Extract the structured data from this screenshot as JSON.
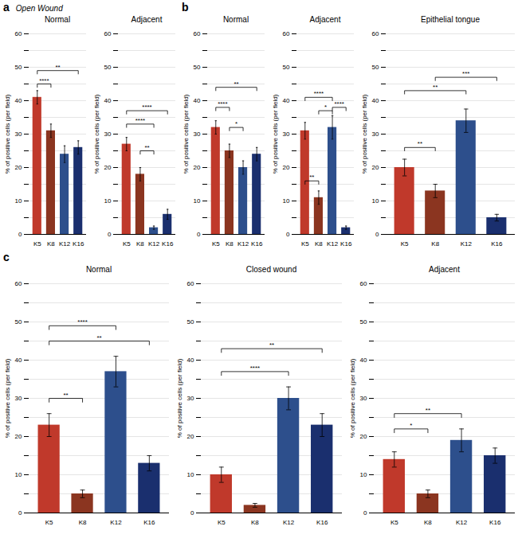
{
  "chart_data": [
    {
      "type": "bar",
      "title": "Normal",
      "annotations": [
        "a",
        "Open Wound"
      ],
      "categories": [
        "K5",
        "K8",
        "K12",
        "K16"
      ],
      "values": [
        41,
        31,
        24,
        26
      ],
      "errors": [
        2.0,
        2.0,
        2.5,
        2.0
      ],
      "colors": [
        "#c0392b",
        "#8B3520",
        "#2d4f8c",
        "#1a2f6e"
      ],
      "significance": [
        {
          "from": "K5",
          "to": "K8",
          "y": 44,
          "label": "****"
        },
        {
          "from": "K5",
          "to": "K16",
          "y": 48,
          "label": "**"
        }
      ],
      "ylabel": "% of positive cells (per field)",
      "ylim": [
        0,
        60
      ],
      "yticks": [
        0,
        {
          "value": 5,
          "label": ""
        },
        10,
        {
          "value": 15,
          "label": ""
        },
        20,
        {
          "value": 25,
          "label": ""
        },
        30,
        {
          "value": 35,
          "label": ""
        },
        40,
        {
          "value": 45,
          "label": ""
        },
        50,
        {
          "value": 55,
          "label": ""
        },
        60
      ],
      "grid": true
    },
    {
      "type": "bar",
      "title": "Adjacent",
      "categories": [
        "K5",
        "K8",
        "K12",
        "K16"
      ],
      "values": [
        27,
        18,
        2,
        6
      ],
      "errors": [
        2.0,
        2.0,
        0.5,
        1.5
      ],
      "colors": [
        "#c0392b",
        "#8B3520",
        "#2d4f8c",
        "#1a2f6e"
      ],
      "significance": [
        {
          "from": "K5",
          "to": "K12",
          "y": 32,
          "label": "****"
        },
        {
          "from": "K5",
          "to": "K16",
          "y": 36,
          "label": "****"
        },
        {
          "from": "K8",
          "to": "K12",
          "y": 24,
          "label": "**"
        }
      ],
      "ylabel": "% of positive cells (per field)",
      "ylim": [
        0,
        60
      ],
      "yticks": [
        0,
        {
          "value": 5,
          "label": ""
        },
        10,
        {
          "value": 15,
          "label": ""
        },
        20,
        {
          "value": 25,
          "label": ""
        },
        30,
        {
          "value": 35,
          "label": ""
        },
        40,
        {
          "value": 45,
          "label": ""
        },
        50,
        {
          "value": 55,
          "label": ""
        },
        60
      ],
      "grid": true
    },
    {
      "type": "bar",
      "title": "Normal",
      "annotations": [
        "b"
      ],
      "categories": [
        "K5",
        "K8",
        "K12",
        "K16"
      ],
      "values": [
        32,
        25,
        20,
        24
      ],
      "errors": [
        2.0,
        2.0,
        2.0,
        2.0
      ],
      "colors": [
        "#c0392b",
        "#8B3520",
        "#2d4f8c",
        "#1a2f6e"
      ],
      "significance": [
        {
          "from": "K5",
          "to": "K8",
          "y": 37,
          "label": "****"
        },
        {
          "from": "K5",
          "to": "K16",
          "y": 43,
          "label": "**"
        },
        {
          "from": "K8",
          "to": "K12",
          "y": 31,
          "label": "*"
        }
      ],
      "ylabel": "% of positive cells (per field)",
      "ylim": [
        0,
        60
      ],
      "yticks": [
        0,
        {
          "value": 5,
          "label": ""
        },
        10,
        {
          "value": 15,
          "label": ""
        },
        20,
        {
          "value": 25,
          "label": ""
        },
        30,
        {
          "value": 35,
          "label": ""
        },
        40,
        {
          "value": 45,
          "label": ""
        },
        50,
        {
          "value": 55,
          "label": ""
        },
        60
      ],
      "grid": true
    },
    {
      "type": "bar",
      "title": "Adjacent",
      "categories": [
        "K5",
        "K8",
        "K12",
        "K16"
      ],
      "values": [
        31,
        11,
        32,
        2
      ],
      "errors": [
        2.5,
        2.0,
        3.5,
        0.5
      ],
      "colors": [
        "#c0392b",
        "#8B3520",
        "#2d4f8c",
        "#1a2f6e"
      ],
      "significance": [
        {
          "from": "K5",
          "to": "K8",
          "y": 15,
          "label": "**"
        },
        {
          "from": "K8",
          "to": "K12",
          "y": 36,
          "label": "*"
        },
        {
          "from": "K5",
          "to": "K12",
          "y": 40,
          "label": "****"
        },
        {
          "from": "K12",
          "to": "K16",
          "y": 37,
          "label": "****"
        }
      ],
      "ylabel": "% of positive cells (per field)",
      "ylim": [
        0,
        60
      ],
      "yticks": [
        0,
        {
          "value": 5,
          "label": ""
        },
        10,
        {
          "value": 15,
          "label": ""
        },
        20,
        {
          "value": 25,
          "label": ""
        },
        30,
        {
          "value": 35,
          "label": ""
        },
        40,
        {
          "value": 45,
          "label": ""
        },
        50,
        {
          "value": 55,
          "label": ""
        },
        60
      ],
      "grid": true
    },
    {
      "type": "bar",
      "title": "Epithelial tongue",
      "categories": [
        "K5",
        "K8",
        "K12",
        "K16"
      ],
      "values": [
        20,
        13,
        34,
        5
      ],
      "errors": [
        2.5,
        2.0,
        3.5,
        1.0
      ],
      "colors": [
        "#c0392b",
        "#8B3520",
        "#2d4f8c",
        "#1a2f6e"
      ],
      "significance": [
        {
          "from": "K5",
          "to": "K8",
          "y": 25,
          "label": "**"
        },
        {
          "from": "K5",
          "to": "K12",
          "y": 42,
          "label": "**"
        },
        {
          "from": "K8",
          "to": "K16",
          "y": 46,
          "label": "***"
        }
      ],
      "ylabel": "% of positive cells (per field)",
      "ylim": [
        0,
        60
      ],
      "yticks": [
        0,
        {
          "value": 5,
          "label": ""
        },
        10,
        {
          "value": 15,
          "label": ""
        },
        20,
        {
          "value": 25,
          "label": ""
        },
        30,
        {
          "value": 35,
          "label": ""
        },
        40,
        {
          "value": 45,
          "label": ""
        },
        50,
        {
          "value": 55,
          "label": ""
        },
        60
      ],
      "grid": true
    },
    {
      "type": "bar",
      "title": "Normal",
      "annotations": [
        "c"
      ],
      "categories": [
        "K5",
        "K8",
        "K12",
        "K16"
      ],
      "values": [
        23,
        5,
        37,
        13
      ],
      "errors": [
        3.0,
        1.0,
        4.0,
        2.0
      ],
      "colors": [
        "#c0392b",
        "#8B3520",
        "#2d4f8c",
        "#1a2f6e"
      ],
      "significance": [
        {
          "from": "K5",
          "to": "K8",
          "y": 29,
          "label": "**"
        },
        {
          "from": "K5",
          "to": "K12",
          "y": 48,
          "label": "****"
        },
        {
          "from": "K5",
          "to": "K16",
          "y": 44,
          "label": "**"
        }
      ],
      "ylabel": "% of positive cells (per field)",
      "ylim": [
        0,
        60
      ],
      "yticks": [
        0,
        {
          "value": 5,
          "label": ""
        },
        10,
        {
          "value": 15,
          "label": ""
        },
        20,
        {
          "value": 25,
          "label": ""
        },
        30,
        {
          "value": 35,
          "label": ""
        },
        40,
        {
          "value": 45,
          "label": ""
        },
        50,
        {
          "value": 55,
          "label": ""
        },
        60
      ],
      "grid": true
    },
    {
      "type": "bar",
      "title": "Closed wound",
      "categories": [
        "K5",
        "K8",
        "K12",
        "K16"
      ],
      "values": [
        10,
        2,
        30,
        23
      ],
      "errors": [
        2.0,
        0.5,
        3.0,
        3.0
      ],
      "colors": [
        "#c0392b",
        "#8B3520",
        "#2d4f8c",
        "#1a2f6e"
      ],
      "significance": [
        {
          "from": "K5",
          "to": "K12",
          "y": 36,
          "label": "****"
        },
        {
          "from": "K5",
          "to": "K16",
          "y": 42,
          "label": "**"
        }
      ],
      "ylabel": "% of positive cells (per field)",
      "ylim": [
        0,
        60
      ],
      "yticks": [
        0,
        {
          "value": 5,
          "label": ""
        },
        10,
        {
          "value": 15,
          "label": ""
        },
        20,
        {
          "value": 25,
          "label": ""
        },
        30,
        {
          "value": 35,
          "label": ""
        },
        40,
        {
          "value": 45,
          "label": ""
        },
        50,
        {
          "value": 55,
          "label": ""
        },
        60
      ],
      "grid": true
    },
    {
      "type": "bar",
      "title": "Adjacent",
      "categories": [
        "K5",
        "K8",
        "K12",
        "K16"
      ],
      "values": [
        14,
        5,
        19,
        15
      ],
      "errors": [
        2.0,
        1.0,
        3.0,
        2.0
      ],
      "colors": [
        "#c0392b",
        "#8B3520",
        "#2d4f8c",
        "#1a2f6e"
      ],
      "significance": [
        {
          "from": "K5",
          "to": "K8",
          "y": 21,
          "label": "*"
        },
        {
          "from": "K5",
          "to": "K12",
          "y": 25,
          "label": "**"
        }
      ],
      "ylabel": "% of positive cells (per field)",
      "ylim": [
        0,
        60
      ],
      "yticks": [
        0,
        {
          "value": 5,
          "label": ""
        },
        10,
        {
          "value": 15,
          "label": ""
        },
        20,
        {
          "value": 25,
          "label": ""
        },
        30,
        {
          "value": 35,
          "label": ""
        },
        40,
        {
          "value": 45,
          "label": ""
        },
        50,
        {
          "value": 55,
          "label": ""
        },
        60
      ],
      "grid": true
    }
  ]
}
